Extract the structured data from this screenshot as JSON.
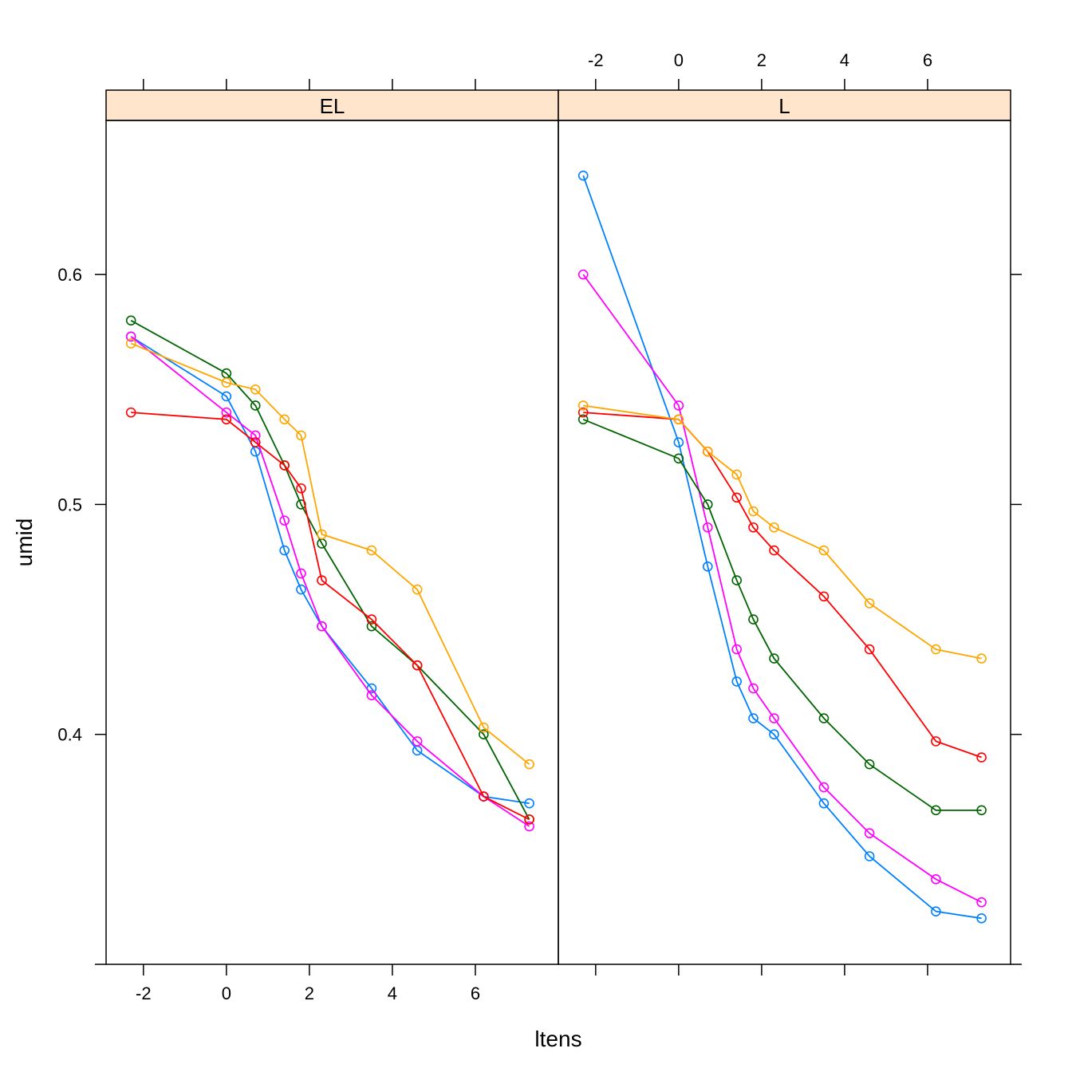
{
  "chart_data": {
    "type": "line",
    "xlabel": "ltens",
    "ylabel": "umid",
    "x_ticks": [
      -2,
      0,
      2,
      4,
      6
    ],
    "y_ticks": [
      0.4,
      0.5,
      0.6
    ],
    "xlim": [
      -2.9,
      8.0
    ],
    "ylim": [
      0.3,
      0.667
    ],
    "grid": false,
    "strip_color": "#FFE5CC",
    "series_colors": [
      "#0080FF",
      "#FF00FF",
      "#006400",
      "#FF0000",
      "#FFA500"
    ],
    "x": [
      -2.3,
      0,
      0.7,
      1.4,
      1.8,
      2.3,
      3.5,
      4.6,
      6.2,
      7.3
    ],
    "panels": [
      {
        "label": "EL",
        "series": [
          {
            "color": "#0080FF",
            "values": [
              0.573,
              0.547,
              0.523,
              0.48,
              0.463,
              0.447,
              0.42,
              0.393,
              0.373,
              0.37
            ]
          },
          {
            "color": "#FF00FF",
            "values": [
              0.573,
              0.54,
              0.53,
              0.493,
              0.47,
              0.447,
              0.417,
              0.397,
              0.373,
              0.36
            ]
          },
          {
            "color": "#006400",
            "values": [
              0.58,
              0.557,
              0.543,
              0.517,
              0.5,
              0.483,
              0.447,
              0.43,
              0.4,
              0.363
            ]
          },
          {
            "color": "#FF0000",
            "values": [
              0.54,
              0.537,
              0.527,
              0.517,
              0.507,
              0.467,
              0.45,
              0.43,
              0.373,
              0.363
            ]
          },
          {
            "color": "#FFA500",
            "values": [
              0.57,
              0.553,
              0.55,
              0.537,
              0.53,
              0.487,
              0.48,
              0.463,
              0.403,
              0.387
            ]
          }
        ]
      },
      {
        "label": "L",
        "series": [
          {
            "color": "#0080FF",
            "values": [
              0.643,
              0.527,
              0.473,
              0.423,
              0.407,
              0.4,
              0.37,
              0.347,
              0.323,
              0.32
            ]
          },
          {
            "color": "#FF00FF",
            "values": [
              0.6,
              0.543,
              0.49,
              0.437,
              0.42,
              0.407,
              0.377,
              0.357,
              0.337,
              0.327
            ]
          },
          {
            "color": "#006400",
            "values": [
              0.537,
              0.52,
              0.5,
              0.467,
              0.45,
              0.433,
              0.407,
              0.387,
              0.367,
              0.367
            ]
          },
          {
            "color": "#FF0000",
            "values": [
              0.54,
              0.537,
              0.523,
              0.503,
              0.49,
              0.48,
              0.46,
              0.437,
              0.397,
              0.39
            ]
          },
          {
            "color": "#FFA500",
            "values": [
              0.543,
              0.537,
              0.523,
              0.513,
              0.497,
              0.49,
              0.48,
              0.457,
              0.437,
              0.433
            ]
          }
        ]
      }
    ]
  }
}
